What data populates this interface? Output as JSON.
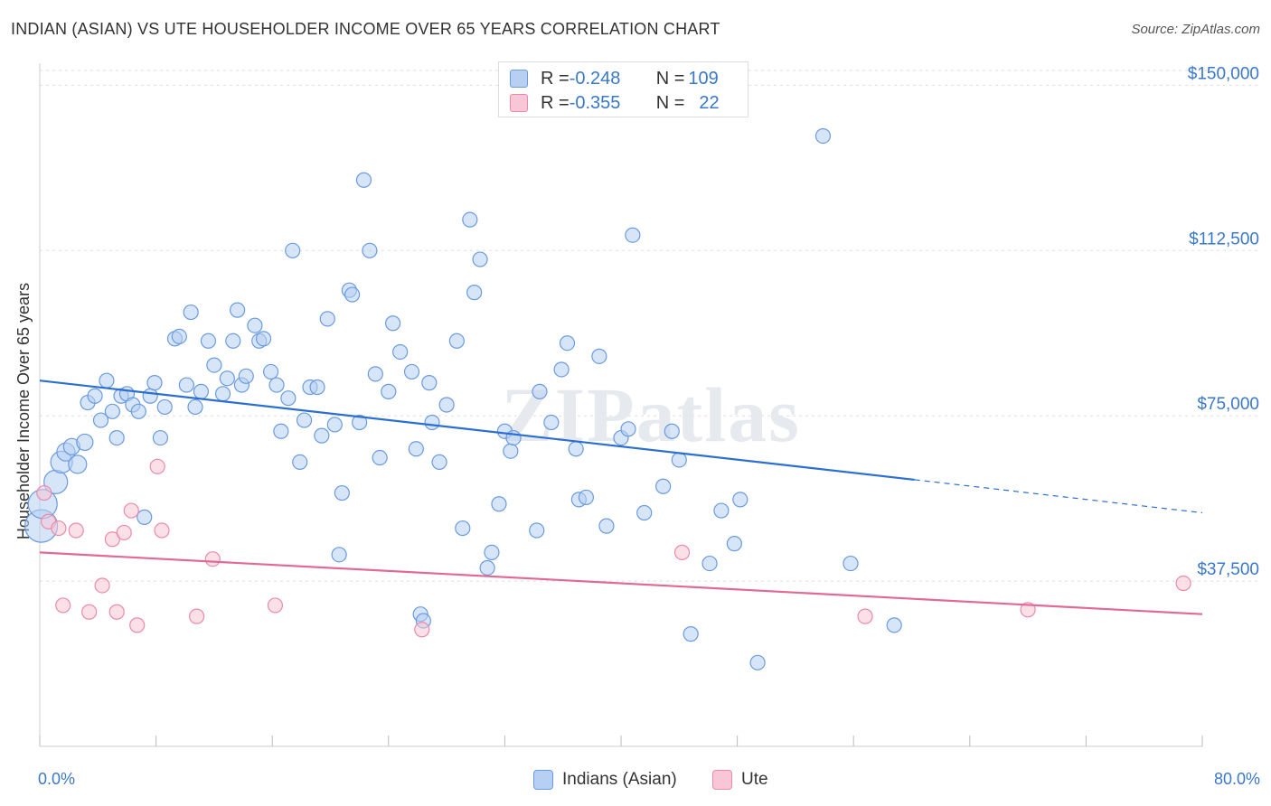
{
  "title": "INDIAN (ASIAN) VS UTE HOUSEHOLDER INCOME OVER 65 YEARS CORRELATION CHART",
  "source": "Source: ZipAtlas.com",
  "watermark": "ZIPatlas",
  "stats": [
    {
      "r_label": "R = ",
      "r_value": "-0.248",
      "n_label": "N = ",
      "n_value": "109",
      "color": "#6a9be0",
      "fill": "#b7cff3"
    },
    {
      "r_label": "R = ",
      "r_value": "-0.355",
      "n_label": "N = ",
      "n_value": "22",
      "color": "#ea8aab",
      "fill": "#f8c6d6"
    }
  ],
  "legend": [
    {
      "label": "Indians (Asian)",
      "color": "#6a9be0",
      "fill": "#b7cff3"
    },
    {
      "label": "Ute",
      "color": "#ea8aab",
      "fill": "#f8c6d6"
    }
  ],
  "x_axis": {
    "min_label": "0.0%",
    "max_label": "80.0%"
  },
  "chart_data": {
    "type": "scatter",
    "xlabel": "",
    "ylabel": "Householder Income Over 65 years",
    "xlim": [
      0,
      80
    ],
    "ylim": [
      0,
      155000
    ],
    "y_ticks": [
      {
        "value": 37500,
        "label": "$37,500"
      },
      {
        "value": 75000,
        "label": "$75,000"
      },
      {
        "value": 112500,
        "label": "$112,500"
      },
      {
        "value": 150000,
        "label": "$150,000"
      }
    ],
    "grid": true,
    "series": [
      {
        "name": "Indians (Asian)",
        "color": "#6a9be0",
        "fill": "#b7cff3",
        "trend": {
          "x": [
            0,
            60.2
          ],
          "y": [
            83000,
            60500
          ],
          "dashed_to": [
            80,
            53000
          ]
        },
        "points": [
          [
            0.1,
            50000,
            18
          ],
          [
            0.2,
            55000,
            16
          ],
          [
            1.1,
            60000,
            13
          ],
          [
            1.5,
            64500,
            12
          ],
          [
            1.8,
            66800,
            10
          ],
          [
            2.2,
            68000,
            9
          ],
          [
            2.6,
            64000,
            10
          ],
          [
            3.1,
            69000,
            9
          ],
          [
            3.3,
            78000,
            8
          ],
          [
            3.8,
            79500,
            8
          ],
          [
            4.2,
            74000,
            8
          ],
          [
            4.6,
            83000,
            8
          ],
          [
            5.0,
            76000,
            8
          ],
          [
            5.3,
            70000,
            8
          ],
          [
            5.6,
            79500,
            8
          ],
          [
            6.0,
            80000,
            8
          ],
          [
            6.4,
            77500,
            8
          ],
          [
            6.8,
            76000,
            8
          ],
          [
            7.2,
            52000,
            8
          ],
          [
            7.6,
            79500,
            8
          ],
          [
            7.9,
            82500,
            8
          ],
          [
            8.3,
            70000,
            8
          ],
          [
            8.6,
            77000,
            8
          ],
          [
            9.3,
            92500,
            8
          ],
          [
            9.6,
            93000,
            8
          ],
          [
            10.1,
            82000,
            8
          ],
          [
            10.4,
            98500,
            8
          ],
          [
            10.7,
            77000,
            8
          ],
          [
            11.1,
            80500,
            8
          ],
          [
            11.6,
            92000,
            8
          ],
          [
            12.0,
            86500,
            8
          ],
          [
            12.6,
            80000,
            8
          ],
          [
            12.9,
            83500,
            8
          ],
          [
            13.3,
            92000,
            8
          ],
          [
            13.6,
            99000,
            8
          ],
          [
            13.9,
            82000,
            8
          ],
          [
            14.2,
            84000,
            8
          ],
          [
            14.8,
            95500,
            8
          ],
          [
            15.1,
            92000,
            8
          ],
          [
            15.4,
            92500,
            8
          ],
          [
            15.9,
            85000,
            8
          ],
          [
            16.3,
            82000,
            8
          ],
          [
            16.6,
            71500,
            8
          ],
          [
            17.1,
            79000,
            8
          ],
          [
            17.4,
            112500,
            8
          ],
          [
            17.9,
            64500,
            8
          ],
          [
            18.2,
            74000,
            8
          ],
          [
            18.6,
            81500,
            8
          ],
          [
            19.1,
            81500,
            8
          ],
          [
            19.4,
            70500,
            8
          ],
          [
            19.8,
            97000,
            8
          ],
          [
            20.3,
            73000,
            8
          ],
          [
            20.8,
            57500,
            8
          ],
          [
            20.6,
            43500,
            8
          ],
          [
            21.3,
            103500,
            8
          ],
          [
            21.5,
            102500,
            8
          ],
          [
            22.0,
            73500,
            8
          ],
          [
            22.3,
            128500,
            8
          ],
          [
            22.7,
            112500,
            8
          ],
          [
            23.1,
            84500,
            8
          ],
          [
            23.4,
            65500,
            8
          ],
          [
            24.0,
            80500,
            8
          ],
          [
            24.3,
            96000,
            8
          ],
          [
            24.8,
            89500,
            8
          ],
          [
            25.6,
            85000,
            8
          ],
          [
            25.9,
            67500,
            8
          ],
          [
            26.8,
            82500,
            8
          ],
          [
            27.0,
            73500,
            8
          ],
          [
            27.5,
            64500,
            8
          ],
          [
            28.0,
            77500,
            8
          ],
          [
            28.7,
            92000,
            8
          ],
          [
            29.1,
            49500,
            8
          ],
          [
            29.6,
            119500,
            8
          ],
          [
            29.9,
            103000,
            8
          ],
          [
            30.3,
            110500,
            8
          ],
          [
            30.8,
            40500,
            8
          ],
          [
            31.1,
            44000,
            8
          ],
          [
            31.6,
            55000,
            8
          ],
          [
            32.0,
            71500,
            8
          ],
          [
            32.4,
            67000,
            8
          ],
          [
            32.6,
            70000,
            8
          ],
          [
            34.2,
            49000,
            8
          ],
          [
            34.4,
            80500,
            8
          ],
          [
            35.2,
            73500,
            8
          ],
          [
            35.9,
            85500,
            8
          ],
          [
            36.3,
            91500,
            8
          ],
          [
            36.9,
            67500,
            8
          ],
          [
            37.1,
            56000,
            8
          ],
          [
            37.6,
            56500,
            8
          ],
          [
            38.5,
            88500,
            8
          ],
          [
            39.0,
            50000,
            8
          ],
          [
            40.0,
            70000,
            8
          ],
          [
            40.5,
            72000,
            8
          ],
          [
            40.8,
            116000,
            8
          ],
          [
            41.6,
            53000,
            8
          ],
          [
            42.9,
            59000,
            8
          ],
          [
            43.5,
            71500,
            8
          ],
          [
            44.0,
            65000,
            8
          ],
          [
            44.8,
            25500,
            8
          ],
          [
            46.1,
            41500,
            8
          ],
          [
            46.9,
            53500,
            8
          ],
          [
            47.8,
            46000,
            8
          ],
          [
            48.2,
            56000,
            8
          ],
          [
            49.4,
            19000,
            8
          ],
          [
            53.9,
            138500,
            8
          ],
          [
            55.8,
            41500,
            8
          ],
          [
            58.8,
            27500,
            8
          ],
          [
            26.2,
            30000,
            8
          ],
          [
            26.4,
            28500,
            8
          ]
        ]
      },
      {
        "name": "Ute",
        "color": "#ea8aab",
        "fill": "#f8c6d6",
        "trend": {
          "x": [
            0,
            80
          ],
          "y": [
            44000,
            30000
          ]
        },
        "points": [
          [
            0.3,
            57500,
            8
          ],
          [
            0.6,
            51000,
            8
          ],
          [
            1.3,
            49500,
            8
          ],
          [
            1.6,
            32000,
            8
          ],
          [
            2.5,
            49000,
            8
          ],
          [
            3.4,
            30500,
            8
          ],
          [
            4.3,
            36500,
            8
          ],
          [
            5.0,
            47000,
            8
          ],
          [
            5.3,
            30500,
            8
          ],
          [
            5.8,
            48500,
            8
          ],
          [
            6.3,
            53500,
            8
          ],
          [
            6.7,
            27500,
            8
          ],
          [
            8.1,
            63500,
            8
          ],
          [
            8.4,
            49000,
            8
          ],
          [
            10.8,
            29500,
            8
          ],
          [
            11.9,
            42500,
            8
          ],
          [
            16.2,
            32000,
            8
          ],
          [
            26.3,
            26500,
            8
          ],
          [
            44.2,
            44000,
            8
          ],
          [
            56.8,
            29500,
            8
          ],
          [
            68.0,
            31000,
            8
          ],
          [
            78.7,
            37000,
            8
          ]
        ]
      }
    ]
  }
}
